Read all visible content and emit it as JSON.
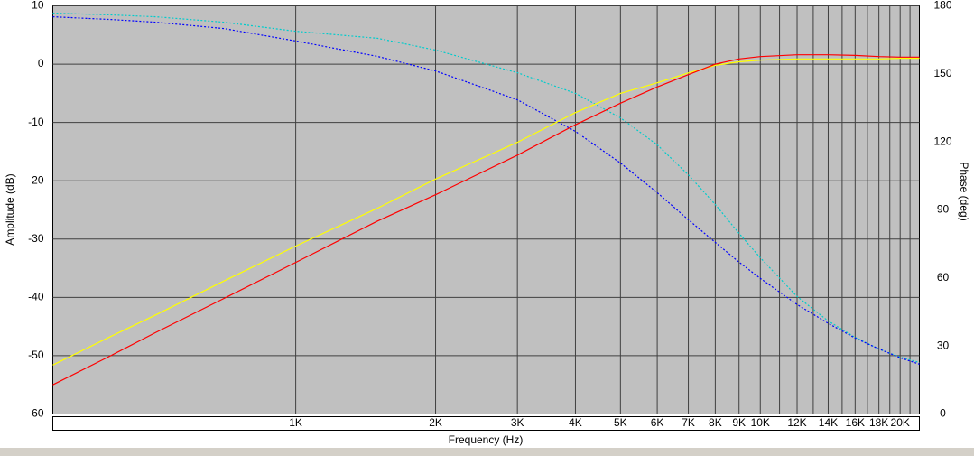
{
  "chart_data": {
    "type": "line",
    "y_label": "Amplitude (dB)",
    "y2_label": "Phase (deg)",
    "x_label": "Frequency (Hz)",
    "xscale": "log",
    "xlim": [
      300,
      22000
    ],
    "xticks": [
      {
        "value": 1000,
        "label": "1K"
      },
      {
        "value": 2000,
        "label": "2K"
      },
      {
        "value": 3000,
        "label": "3K"
      },
      {
        "value": 4000,
        "label": "4K"
      },
      {
        "value": 5000,
        "label": "5K"
      },
      {
        "value": 6000,
        "label": "6K"
      },
      {
        "value": 7000,
        "label": "7K"
      },
      {
        "value": 8000,
        "label": "8K"
      },
      {
        "value": 9000,
        "label": "9K"
      },
      {
        "value": 10000,
        "label": "10K"
      },
      {
        "value": 12000,
        "label": "12K"
      },
      {
        "value": 14000,
        "label": "14K"
      },
      {
        "value": 16000,
        "label": "16K"
      },
      {
        "value": 18000,
        "label": "18K"
      },
      {
        "value": 20000,
        "label": "20K"
      }
    ],
    "minor_xticks": [
      11000,
      13000,
      15000,
      17000,
      19000,
      21000
    ],
    "ylim": [
      -60,
      10
    ],
    "yticks": [
      -60,
      -50,
      -40,
      -30,
      -20,
      -10,
      0,
      10
    ],
    "y2lim": [
      0,
      180
    ],
    "y2ticks": [
      0,
      30,
      60,
      90,
      120,
      150,
      180
    ],
    "grid": true,
    "x": [
      300,
      400,
      500,
      700,
      1000,
      1500,
      2000,
      3000,
      4000,
      5000,
      6000,
      7000,
      8000,
      9000,
      10000,
      12000,
      14000,
      16000,
      18000,
      20000,
      22000
    ],
    "series": [
      {
        "color": "#00cccc",
        "dash": true,
        "axis": "y2",
        "values": [
          176.8,
          176,
          175.2,
          172.8,
          168.8,
          165.7,
          160.5,
          150.5,
          141.4,
          130.6,
          118.7,
          105.5,
          92.4,
          79.7,
          68.9,
          51.8,
          41,
          33.8,
          28.7,
          25.1,
          22.7
        ]
      },
      {
        "color": "#0000ff",
        "dash": true,
        "axis": "y2",
        "values": [
          175.2,
          174,
          172.8,
          170,
          164.5,
          157.7,
          151.3,
          138.6,
          124.6,
          110.7,
          97.6,
          85.7,
          75.7,
          67,
          59.8,
          48.3,
          40,
          33.5,
          28.7,
          24.8,
          22
        ]
      },
      {
        "color": "#ffff00",
        "dash": false,
        "values": [
          -51.6,
          -46.7,
          -43,
          -37.2,
          -31.2,
          -24.7,
          -19.7,
          -13.4,
          -8.3,
          -5,
          -3.2,
          -1.5,
          -0.2,
          0.4,
          0.7,
          0.9,
          0.9,
          0.9,
          0.9,
          1,
          1
        ]
      },
      {
        "color": "#ff0000",
        "dash": false,
        "values": [
          -55,
          -50,
          -46,
          -40.2,
          -34,
          -26.9,
          -22.4,
          -15.6,
          -10.4,
          -6.7,
          -3.9,
          -1.8,
          0,
          0.9,
          1.3,
          1.6,
          1.6,
          1.5,
          1.3,
          1.2,
          1.2
        ]
      }
    ]
  }
}
